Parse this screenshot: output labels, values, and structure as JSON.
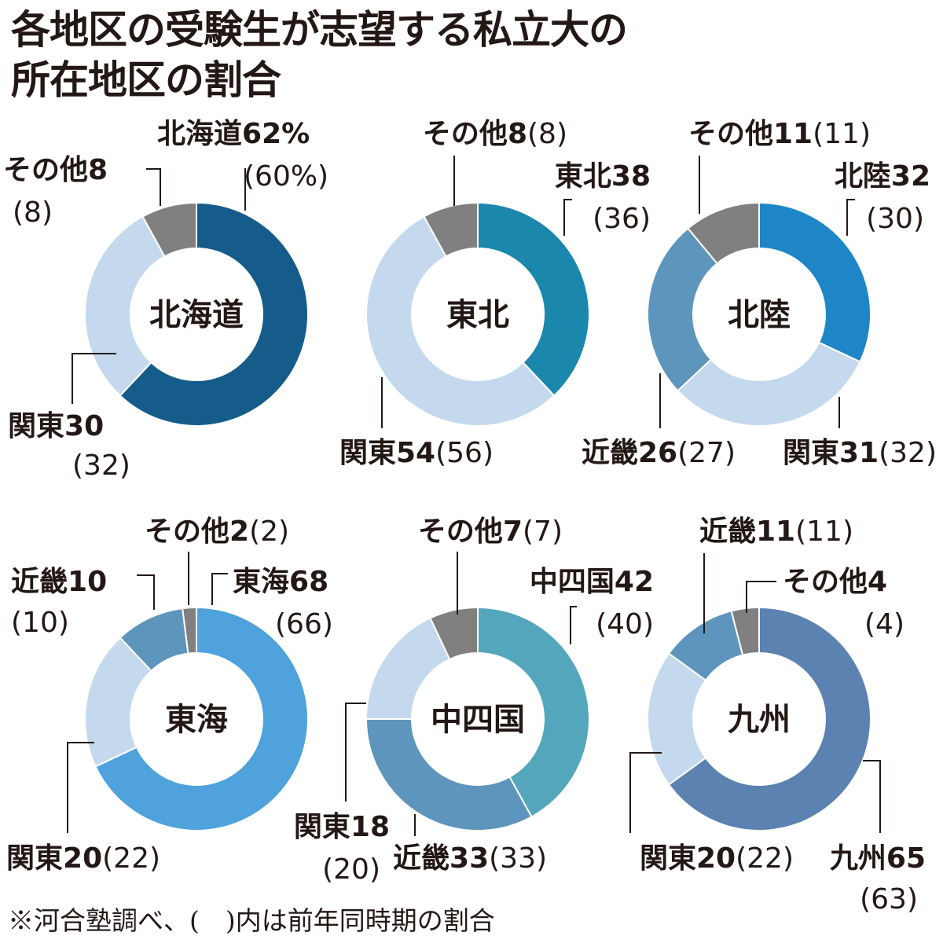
{
  "title": {
    "line1": "各地区の受験生が志望する私立大の",
    "line2": "所在地区の割合"
  },
  "footnote": "※河合塾調べ、(　)内は前年同時期の割合",
  "chart_data": [
    {
      "type": "pie",
      "center_label": "北海道",
      "slices": [
        {
          "name": "北海道",
          "value": 62,
          "unit": "%",
          "prev": 60,
          "prev_unit": "%",
          "color": "#155c8a"
        },
        {
          "name": "関東",
          "value": 30,
          "prev": 32,
          "color": "#c4d9ed"
        },
        {
          "name": "その他",
          "value": 8,
          "prev": 8,
          "color": "#808080"
        }
      ]
    },
    {
      "type": "pie",
      "center_label": "東北",
      "slices": [
        {
          "name": "東北",
          "value": 38,
          "prev": 36,
          "color": "#1b87ad"
        },
        {
          "name": "関東",
          "value": 54,
          "prev": 56,
          "color": "#c4d9ed"
        },
        {
          "name": "その他",
          "value": 8,
          "prev": 8,
          "color": "#808080"
        }
      ]
    },
    {
      "type": "pie",
      "center_label": "北陸",
      "slices": [
        {
          "name": "北陸",
          "value": 32,
          "prev": 30,
          "color": "#1e86c6"
        },
        {
          "name": "関東",
          "value": 31,
          "prev": 32,
          "color": "#c4d9ed"
        },
        {
          "name": "近畿",
          "value": 26,
          "prev": 27,
          "color": "#5e95bd"
        },
        {
          "name": "その他",
          "value": 11,
          "prev": 11,
          "color": "#808080"
        }
      ]
    },
    {
      "type": "pie",
      "center_label": "東海",
      "slices": [
        {
          "name": "東海",
          "value": 68,
          "prev": 66,
          "color": "#4fa2db"
        },
        {
          "name": "関東",
          "value": 20,
          "prev": 22,
          "color": "#c4d9ed"
        },
        {
          "name": "近畿",
          "value": 10,
          "prev": 10,
          "color": "#5e95bd"
        },
        {
          "name": "その他",
          "value": 2,
          "prev": 2,
          "color": "#808080"
        }
      ]
    },
    {
      "type": "pie",
      "center_label": "中四国",
      "slices": [
        {
          "name": "中四国",
          "value": 42,
          "prev": 40,
          "color": "#54a6bd"
        },
        {
          "name": "近畿",
          "value": 33,
          "prev": 33,
          "color": "#5e95bd"
        },
        {
          "name": "関東",
          "value": 18,
          "prev": 20,
          "color": "#c4d9ed"
        },
        {
          "name": "その他",
          "value": 7,
          "prev": 7,
          "color": "#808080"
        }
      ]
    },
    {
      "type": "pie",
      "center_label": "九州",
      "slices": [
        {
          "name": "九州",
          "value": 65,
          "prev": 63,
          "color": "#5b82b0"
        },
        {
          "name": "関東",
          "value": 20,
          "prev": 22,
          "color": "#c4d9ed"
        },
        {
          "name": "近畿",
          "value": 11,
          "prev": 11,
          "color": "#5e95bd"
        },
        {
          "name": "その他",
          "value": 4,
          "prev": 4,
          "color": "#808080"
        }
      ]
    }
  ]
}
